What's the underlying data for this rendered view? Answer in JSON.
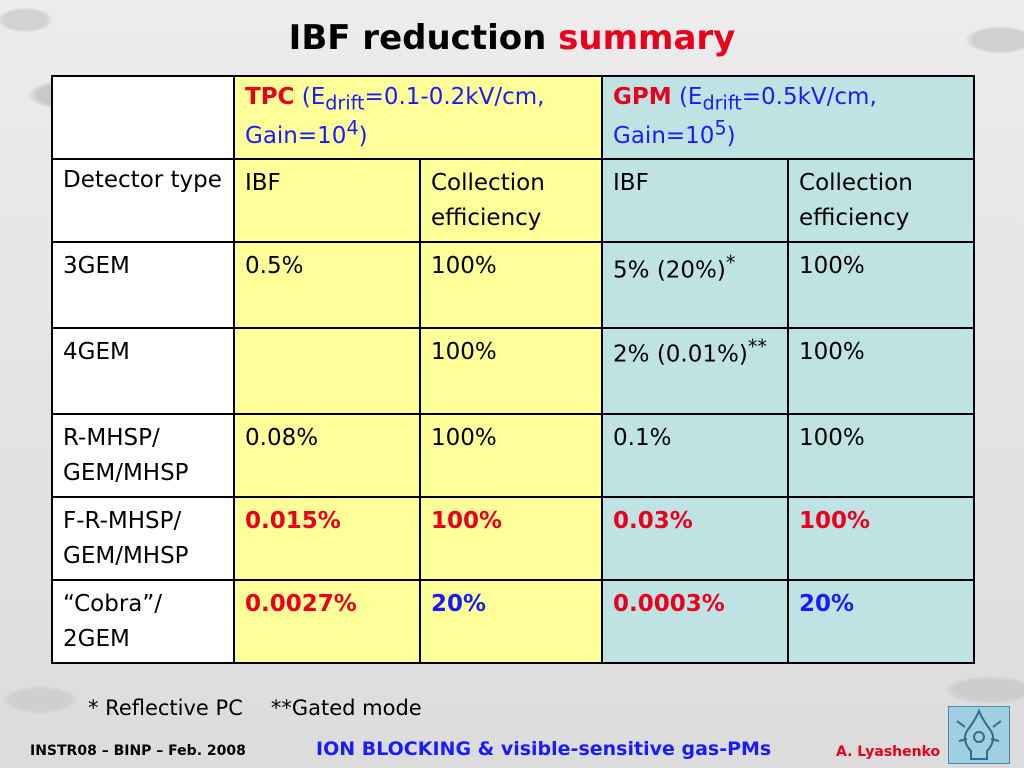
{
  "title": {
    "main": "IBF reduction",
    "accent": "summary"
  },
  "table": {
    "header": {
      "tpc": {
        "name": "TPC",
        "open": " (E",
        "sub": "drift",
        "rest": "=0.1-0.2kV/cm, Gain=10",
        "sup": "4",
        "close": ")"
      },
      "gpm": {
        "name": "GPM",
        "open": " (E",
        "sub": "drift",
        "rest": "=0.5kV/cm, Gain=10",
        "sup": "5",
        "close": ")"
      }
    },
    "subheader": {
      "label": "Detector type",
      "tpc_ibf": "IBF",
      "tpc_ce": "Collection efficiency",
      "gpm_ibf": "IBF",
      "gpm_ce": "Collection efficiency"
    },
    "rows": [
      {
        "label": "3GEM",
        "tpc_ibf": "0.5%",
        "tpc_ce": "100%",
        "gpm_ibf": "5% (20%)",
        "gpm_ibf_sup": "*",
        "gpm_ce": "100%"
      },
      {
        "label": "4GEM",
        "tpc_ibf": "",
        "tpc_ce": "100%",
        "gpm_ibf": "2% (0.01%)",
        "gpm_ibf_sup": "**",
        "gpm_ce": "100%"
      },
      {
        "label": "R-MHSP/ GEM/MHSP",
        "tpc_ibf": "0.08%",
        "tpc_ce": "100%",
        "gpm_ibf": "0.1%",
        "gpm_ce": "100%"
      },
      {
        "label": "F-R-MHSP/ GEM/MHSP",
        "tpc_ibf": "0.015%",
        "tpc_ce": "100%",
        "gpm_ibf": "0.03%",
        "gpm_ce": "100%"
      },
      {
        "label": "“Cobra”/ 2GEM",
        "tpc_ibf": "0.0027%",
        "tpc_ce": "20%",
        "gpm_ibf": "0.0003%",
        "gpm_ce": "20%"
      }
    ]
  },
  "footnotes": {
    "first": "* Reflective PC",
    "second": "**Gated mode"
  },
  "footer": {
    "left": "INSTR08 – BINP – Feb. 2008",
    "center": "ION BLOCKING & visible-sensitive gas-PMs",
    "right": "A. Lyashenko"
  },
  "colors": {
    "red": "#e8001c",
    "blue": "#1a1aff",
    "tpc_bg": "#ffff99",
    "gpm_bg": "#bfe3e3"
  },
  "logo_icon": "institute-logo-icon"
}
